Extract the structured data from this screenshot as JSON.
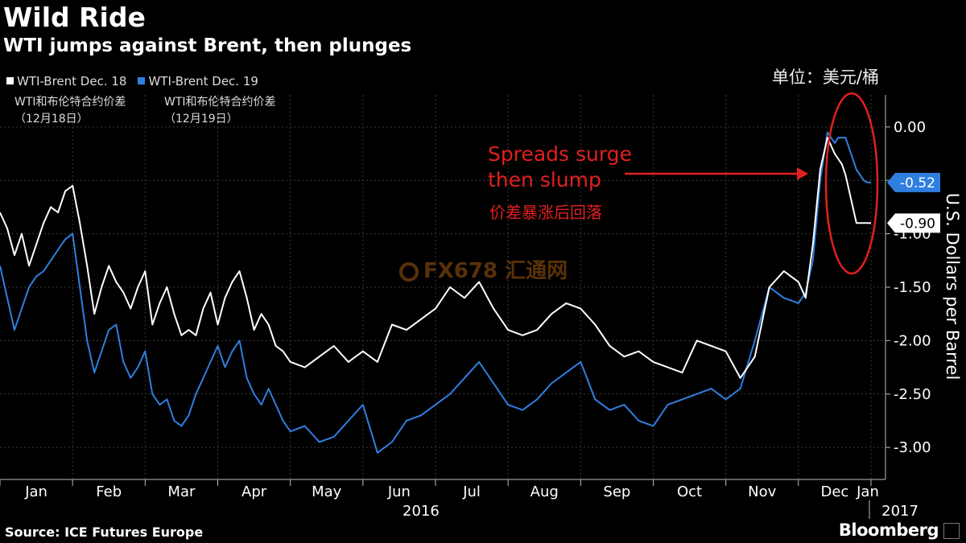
{
  "header": {
    "title": "Wild Ride",
    "subtitle": "WTI jumps against Brent, then plunges",
    "unit_cn": "单位：美元/桶"
  },
  "legend": {
    "items": [
      {
        "label": "WTI-Brent Dec. 18",
        "color": "#ffffff",
        "label_cn": "WTI和布伦特合约价差\n（12月18日）"
      },
      {
        "label": "WTI-Brent Dec. 19",
        "color": "#2f7fe0",
        "label_cn": "WTI和布伦特合约价差\n（12月19日）"
      }
    ]
  },
  "annotation": {
    "text_en": "Spreads surge\nthen slump",
    "text_cn": "价差暴涨后回落"
  },
  "watermark": {
    "text": "FX678 汇通网"
  },
  "footer": {
    "source": "Source: ICE Futures Europe",
    "brand": "Bloomberg"
  },
  "chart_data": {
    "type": "line",
    "title": "Wild Ride",
    "subtitle": "WTI jumps against Brent, then plunges",
    "ylabel": "U.S. Dollars per Barrel",
    "ylim": [
      -3.3,
      0.3
    ],
    "yticks": [
      0.0,
      -0.5,
      -1.0,
      -1.5,
      -2.0,
      -2.5,
      -3.0
    ],
    "ytick_labels": [
      "0.00",
      "-0.50",
      "-1.00",
      "-1.50",
      "-2.00",
      "-2.50",
      "-3.00"
    ],
    "x_domain": [
      0,
      12.2
    ],
    "x_months": [
      "Jan",
      "Feb",
      "Mar",
      "Apr",
      "May",
      "Jun",
      "Jul",
      "Aug",
      "Sep",
      "Oct",
      "Nov",
      "Dec",
      "Jan"
    ],
    "x_years": [
      "2016",
      "2017"
    ],
    "grid": true,
    "legend_position": "top-left",
    "value_labels": [
      "-0.52",
      "-0.90"
    ],
    "series": [
      {
        "name": "WTI-Brent Dec. 18",
        "color": "#ffffff",
        "x": [
          0.0,
          0.1,
          0.2,
          0.3,
          0.4,
          0.5,
          0.6,
          0.7,
          0.8,
          0.9,
          1.0,
          1.1,
          1.2,
          1.3,
          1.4,
          1.5,
          1.6,
          1.7,
          1.8,
          1.9,
          2.0,
          2.1,
          2.2,
          2.3,
          2.4,
          2.5,
          2.6,
          2.7,
          2.8,
          2.9,
          3.0,
          3.1,
          3.2,
          3.3,
          3.4,
          3.5,
          3.6,
          3.7,
          3.8,
          3.9,
          4.0,
          4.2,
          4.4,
          4.6,
          4.8,
          5.0,
          5.2,
          5.4,
          5.6,
          5.8,
          6.0,
          6.2,
          6.4,
          6.6,
          6.8,
          7.0,
          7.2,
          7.4,
          7.6,
          7.8,
          8.0,
          8.2,
          8.4,
          8.6,
          8.8,
          9.0,
          9.2,
          9.4,
          9.6,
          9.8,
          10.0,
          10.2,
          10.4,
          10.6,
          10.8,
          11.0,
          11.1,
          11.2,
          11.3,
          11.4,
          11.5,
          11.55,
          11.6,
          11.65,
          11.7,
          11.75,
          11.8,
          11.85,
          11.9,
          11.95,
          12.0
        ],
        "y": [
          -0.8,
          -0.95,
          -1.2,
          -1.0,
          -1.3,
          -1.1,
          -0.9,
          -0.75,
          -0.8,
          -0.6,
          -0.55,
          -0.9,
          -1.3,
          -1.75,
          -1.5,
          -1.3,
          -1.45,
          -1.55,
          -1.7,
          -1.5,
          -1.35,
          -1.85,
          -1.65,
          -1.5,
          -1.75,
          -1.95,
          -1.9,
          -1.95,
          -1.7,
          -1.55,
          -1.85,
          -1.6,
          -1.45,
          -1.35,
          -1.6,
          -1.9,
          -1.75,
          -1.85,
          -2.05,
          -2.1,
          -2.2,
          -2.25,
          -2.15,
          -2.05,
          -2.2,
          -2.1,
          -2.2,
          -1.85,
          -1.9,
          -1.8,
          -1.7,
          -1.5,
          -1.6,
          -1.45,
          -1.7,
          -1.9,
          -1.95,
          -1.9,
          -1.75,
          -1.65,
          -1.7,
          -1.85,
          -2.05,
          -2.15,
          -2.1,
          -2.2,
          -2.25,
          -2.3,
          -2.0,
          -2.05,
          -2.1,
          -2.35,
          -2.15,
          -1.5,
          -1.35,
          -1.45,
          -1.6,
          -1.1,
          -0.4,
          -0.1,
          -0.25,
          -0.3,
          -0.35,
          -0.45,
          -0.6,
          -0.75,
          -0.9,
          -0.9,
          -0.9,
          -0.9,
          -0.9
        ]
      },
      {
        "name": "WTI-Brent Dec. 19",
        "color": "#2f7fe0",
        "x": [
          0.0,
          0.1,
          0.2,
          0.3,
          0.4,
          0.5,
          0.6,
          0.7,
          0.8,
          0.9,
          1.0,
          1.1,
          1.2,
          1.3,
          1.4,
          1.5,
          1.6,
          1.7,
          1.8,
          1.9,
          2.0,
          2.1,
          2.2,
          2.3,
          2.4,
          2.5,
          2.6,
          2.7,
          2.8,
          2.9,
          3.0,
          3.1,
          3.2,
          3.3,
          3.4,
          3.5,
          3.6,
          3.7,
          3.8,
          3.9,
          4.0,
          4.2,
          4.4,
          4.6,
          4.8,
          5.0,
          5.2,
          5.4,
          5.6,
          5.8,
          6.0,
          6.2,
          6.4,
          6.6,
          6.8,
          7.0,
          7.2,
          7.4,
          7.6,
          7.8,
          8.0,
          8.2,
          8.4,
          8.6,
          8.8,
          9.0,
          9.2,
          9.4,
          9.6,
          9.8,
          10.0,
          10.2,
          10.4,
          10.6,
          10.8,
          11.0,
          11.1,
          11.2,
          11.3,
          11.4,
          11.5,
          11.55,
          11.6,
          11.65,
          11.7,
          11.75,
          11.8,
          11.85,
          11.9,
          11.95,
          12.0
        ],
        "y": [
          -1.3,
          -1.6,
          -1.9,
          -1.7,
          -1.5,
          -1.4,
          -1.35,
          -1.25,
          -1.15,
          -1.05,
          -1.0,
          -1.5,
          -2.0,
          -2.3,
          -2.1,
          -1.9,
          -1.85,
          -2.2,
          -2.35,
          -2.25,
          -2.1,
          -2.5,
          -2.6,
          -2.55,
          -2.75,
          -2.8,
          -2.7,
          -2.5,
          -2.35,
          -2.2,
          -2.05,
          -2.25,
          -2.1,
          -2.0,
          -2.35,
          -2.5,
          -2.6,
          -2.45,
          -2.6,
          -2.75,
          -2.85,
          -2.8,
          -2.95,
          -2.9,
          -2.75,
          -2.6,
          -3.05,
          -2.95,
          -2.75,
          -2.7,
          -2.6,
          -2.5,
          -2.35,
          -2.2,
          -2.4,
          -2.6,
          -2.65,
          -2.55,
          -2.4,
          -2.3,
          -2.2,
          -2.55,
          -2.65,
          -2.6,
          -2.75,
          -2.8,
          -2.6,
          -2.55,
          -2.5,
          -2.45,
          -2.55,
          -2.45,
          -2.0,
          -1.5,
          -1.6,
          -1.65,
          -1.55,
          -1.25,
          -0.5,
          -0.05,
          -0.15,
          -0.1,
          -0.1,
          -0.1,
          -0.2,
          -0.3,
          -0.4,
          -0.45,
          -0.5,
          -0.52,
          -0.52
        ]
      }
    ]
  }
}
